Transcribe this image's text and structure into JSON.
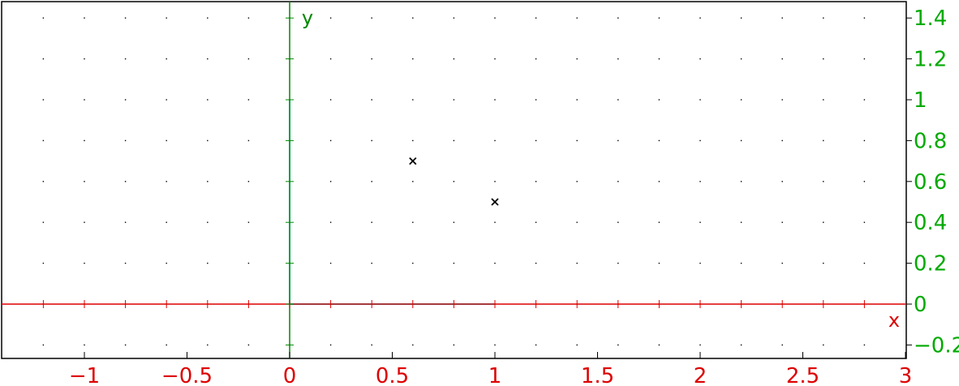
{
  "chart_data": {
    "type": "scatter",
    "title": "",
    "xlabel": "x",
    "ylabel": "y",
    "xlim": [
      -1.4,
      3.0
    ],
    "ylim": [
      -0.27,
      1.46
    ],
    "grid": true,
    "grid_step": 0.2,
    "x_ticks": [
      {
        "value": -1,
        "label": "−1"
      },
      {
        "value": -0.5,
        "label": "−0.5"
      },
      {
        "value": 0,
        "label": "0"
      },
      {
        "value": 0.5,
        "label": "0.5"
      },
      {
        "value": 1,
        "label": "1"
      },
      {
        "value": 1.5,
        "label": "1.5"
      },
      {
        "value": 2,
        "label": "2"
      },
      {
        "value": 2.5,
        "label": "2.5"
      },
      {
        "value": 3,
        "label": "3"
      }
    ],
    "y_ticks": [
      {
        "value": -0.2,
        "label": "−0.2"
      },
      {
        "value": 0,
        "label": "0"
      },
      {
        "value": 0.2,
        "label": "0.2"
      },
      {
        "value": 0.4,
        "label": "0.4"
      },
      {
        "value": 0.6,
        "label": "0.6"
      },
      {
        "value": 0.8,
        "label": "0.8"
      },
      {
        "value": 1,
        "label": "1"
      },
      {
        "value": 1.2,
        "label": "1.2"
      },
      {
        "value": 1.4,
        "label": "1.4"
      }
    ],
    "unit_vectors": {
      "x": [
        0,
        1
      ],
      "y": [
        0,
        1
      ]
    },
    "points": [
      {
        "x": 0.6,
        "y": 0.7
      },
      {
        "x": 1.0,
        "y": 0.5
      }
    ],
    "colors": {
      "x_axis": "#dd0000",
      "y_axis": "#008800",
      "x_ticks": "#dd0000",
      "y_ticks": "#00aa00",
      "unit_vector": "#00e5ee",
      "points": "#000000",
      "grid_dots": "#000000"
    }
  }
}
